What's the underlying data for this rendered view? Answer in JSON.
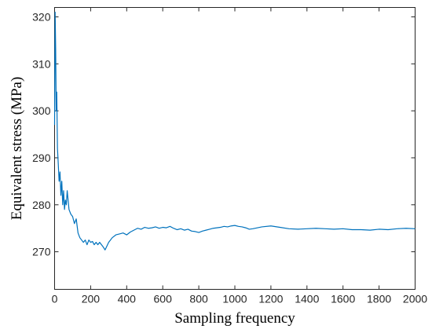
{
  "chart_data": {
    "type": "line",
    "title": "",
    "xlabel": "Sampling frequency",
    "ylabel": "Equivalent stress (MPa)",
    "xlim": [
      0,
      2000
    ],
    "ylim": [
      262,
      322
    ],
    "xticks": [
      0,
      200,
      400,
      600,
      800,
      1000,
      1200,
      1400,
      1600,
      1800,
      2000
    ],
    "yticks": [
      270,
      280,
      290,
      300,
      310,
      320
    ],
    "grid": false,
    "legend": "none",
    "series": [
      {
        "color": "#0072BD",
        "x": [
          0,
          3,
          6,
          9,
          12,
          16,
          20,
          25,
          30,
          35,
          40,
          45,
          50,
          55,
          60,
          65,
          70,
          80,
          90,
          100,
          110,
          120,
          130,
          140,
          150,
          160,
          170,
          180,
          190,
          200,
          210,
          220,
          230,
          240,
          250,
          260,
          270,
          280,
          290,
          300,
          320,
          340,
          360,
          380,
          400,
          420,
          440,
          460,
          480,
          500,
          520,
          540,
          560,
          580,
          600,
          620,
          640,
          660,
          680,
          700,
          720,
          740,
          760,
          780,
          800,
          820,
          840,
          860,
          880,
          900,
          920,
          940,
          960,
          980,
          1000,
          1020,
          1040,
          1060,
          1080,
          1100,
          1150,
          1200,
          1250,
          1300,
          1350,
          1400,
          1450,
          1500,
          1550,
          1600,
          1650,
          1700,
          1750,
          1800,
          1850,
          1900,
          1950,
          2000
        ],
        "values": [
          297,
          321,
          313,
          300,
          304,
          292,
          289,
          285,
          287,
          282,
          285,
          280,
          283,
          279,
          281,
          280,
          283,
          279,
          278,
          277.5,
          276,
          277,
          274,
          273,
          272.5,
          272,
          272.5,
          271.5,
          272.5,
          272,
          272.2,
          271.5,
          272,
          271.5,
          272,
          271.5,
          271,
          270.4,
          271.2,
          272,
          273,
          273.6,
          273.8,
          274,
          273.6,
          274.2,
          274.6,
          275,
          274.8,
          275.2,
          275,
          275.1,
          275.3,
          275,
          275.2,
          275.1,
          275.4,
          275,
          274.7,
          274.9,
          274.6,
          274.8,
          274.4,
          274.3,
          274.1,
          274.4,
          274.6,
          274.8,
          275,
          275.1,
          275.2,
          275.4,
          275.3,
          275.5,
          275.6,
          275.4,
          275.3,
          275.1,
          274.8,
          274.9,
          275.3,
          275.5,
          275.2,
          274.9,
          274.8,
          274.9,
          275,
          274.9,
          274.8,
          274.9,
          274.7,
          274.7,
          274.6,
          274.8,
          274.7,
          274.9,
          275,
          274.9
        ]
      }
    ]
  }
}
